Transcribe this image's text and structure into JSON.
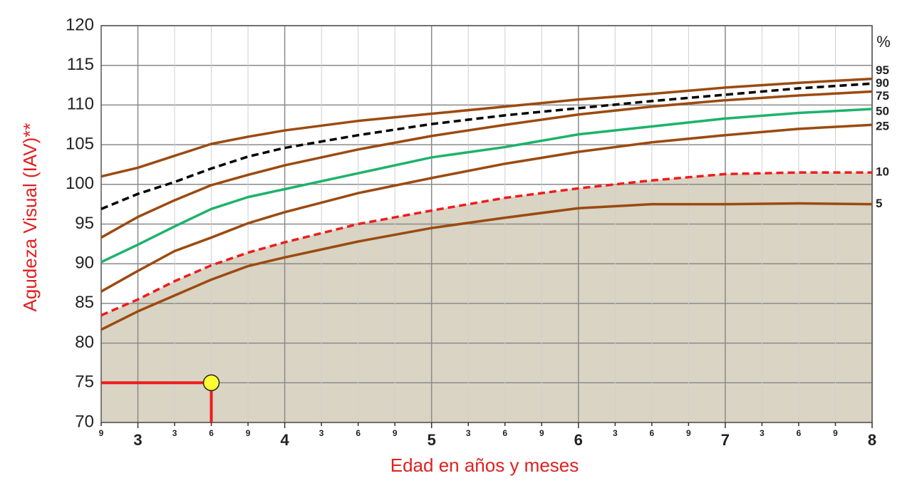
{
  "chart_data": {
    "type": "line",
    "y_label": "Agudeza Visual (IAV)**",
    "x_label": "Edad en años y meses",
    "legend_title": "%",
    "x": [
      2.75,
      3,
      3.25,
      3.5,
      3.75,
      4,
      4.5,
      5,
      5.5,
      6,
      6.5,
      7,
      7.5,
      8
    ],
    "series": [
      {
        "name": "95",
        "color": "#9c4a10",
        "dashed": false,
        "values": [
          101.0,
          102.1,
          103.6,
          105.1,
          106.0,
          106.8,
          108.0,
          108.9,
          109.8,
          110.7,
          111.4,
          112.2,
          112.8,
          113.3
        ]
      },
      {
        "name": "90",
        "color": "#000000",
        "dashed": true,
        "values": [
          96.9,
          98.8,
          100.3,
          102.0,
          103.5,
          104.6,
          106.2,
          107.6,
          108.7,
          109.6,
          110.5,
          111.3,
          112.1,
          112.7
        ]
      },
      {
        "name": "75",
        "color": "#9c4a10",
        "dashed": false,
        "values": [
          93.3,
          95.9,
          98.0,
          99.9,
          101.2,
          102.4,
          104.4,
          106.1,
          107.5,
          108.8,
          109.8,
          110.6,
          111.2,
          111.7
        ]
      },
      {
        "name": "50",
        "color": "#1db36b",
        "dashed": false,
        "values": [
          90.2,
          92.4,
          94.7,
          96.9,
          98.4,
          99.4,
          101.4,
          103.4,
          104.7,
          106.3,
          107.3,
          108.3,
          109.0,
          109.5
        ]
      },
      {
        "name": "25",
        "color": "#9c4a10",
        "dashed": false,
        "values": [
          86.5,
          89.1,
          91.6,
          93.3,
          95.1,
          96.5,
          98.9,
          100.8,
          102.6,
          104.1,
          105.3,
          106.2,
          107.0,
          107.5
        ]
      },
      {
        "name": "10",
        "color": "#ee1c1c",
        "dashed": true,
        "shade_below": "#d9d4c3",
        "values": [
          83.5,
          85.5,
          87.8,
          89.8,
          91.4,
          92.7,
          95.0,
          96.7,
          98.3,
          99.5,
          100.5,
          101.3,
          101.5,
          101.5
        ]
      },
      {
        "name": "5",
        "color": "#9c4a10",
        "dashed": false,
        "values": [
          81.7,
          84.0,
          86.0,
          88.0,
          89.7,
          90.8,
          92.8,
          94.5,
          95.8,
          97.0,
          97.5,
          97.5,
          97.6,
          97.5
        ]
      }
    ],
    "marker": {
      "x": 3.5,
      "y": 75,
      "color": "#ffff33",
      "line_color": "#ee1c1c"
    },
    "xlim": [
      2.75,
      8
    ],
    "ylim": [
      70,
      120
    ],
    "xticks": [
      {
        "value": 2.75,
        "label": "9"
      },
      3,
      {
        "value": 3.25,
        "label": "3"
      },
      {
        "value": 3.5,
        "label": "6"
      },
      {
        "value": 3.75,
        "label": "9"
      },
      4,
      {
        "value": 4.25,
        "label": "3"
      },
      {
        "value": 4.5,
        "label": "6"
      },
      {
        "value": 4.75,
        "label": "9"
      },
      5,
      {
        "value": 5.25,
        "label": "3"
      },
      {
        "value": 5.5,
        "label": "6"
      },
      {
        "value": 5.75,
        "label": "9"
      },
      6,
      {
        "value": 6.25,
        "label": "3"
      },
      {
        "value": 6.5,
        "label": "6"
      },
      {
        "value": 6.75,
        "label": "9"
      },
      7,
      {
        "value": 7.25,
        "label": "3"
      },
      {
        "value": 7.5,
        "label": "6"
      },
      {
        "value": 7.75,
        "label": "9"
      },
      8
    ],
    "yticks": [
      70,
      75,
      80,
      85,
      90,
      95,
      100,
      105,
      110,
      115,
      120
    ],
    "grid": true
  }
}
